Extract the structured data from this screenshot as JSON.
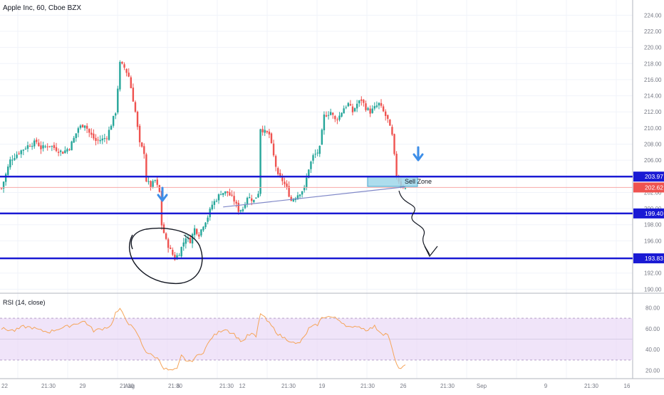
{
  "header": {
    "symbol_title": "Apple Inc, 60, Cboe BZX"
  },
  "colors": {
    "up": "#26a69a",
    "down": "#ef5350",
    "level_line": "#1a1ad4",
    "rsi_line": "#f5a55a",
    "rsi_band": "#e9d8f7",
    "zone_fill": "#9fd8ea",
    "zone_stroke": "#2b9ac7",
    "arrow": "#3d8ee8",
    "price_tag": "#ef5350"
  },
  "price_axis": {
    "ticks": [
      "224.00",
      "222.00",
      "220.00",
      "218.00",
      "216.00",
      "214.00",
      "212.00",
      "210.00",
      "208.00",
      "206.00",
      "202.00",
      "200.00",
      "198.00",
      "196.00",
      "192.00",
      "190.00"
    ],
    "levels": [
      {
        "price": 203.97,
        "label": "203.97"
      },
      {
        "price": 199.4,
        "label": "199.40"
      },
      {
        "price": 193.83,
        "label": "193.83"
      }
    ],
    "current_price": {
      "price": 202.62,
      "label": "202.62"
    }
  },
  "rsi": {
    "label": "RSI (14, close)",
    "ticks": [
      "80.00",
      "60.00",
      "40.00",
      "20.00"
    ],
    "upper": 70,
    "lower": 30
  },
  "annotations": {
    "sell_zone_label": "Sell Zone",
    "sell_zone": {
      "top": 204.0,
      "bottom": 202.75
    }
  },
  "time_axis": {
    "labels": [
      "22",
      "21:30",
      "29",
      "21:30",
      "Aug",
      "21:30",
      "6",
      "21:30",
      "12",
      "21:30",
      "19",
      "21:30",
      "26",
      "21:30",
      "Sep",
      "9",
      "21:30",
      "16"
    ]
  },
  "chart_data": {
    "type": "candlestick",
    "symbol": "Apple Inc",
    "interval": "60",
    "exchange": "Cboe BZX",
    "ylim": [
      189.5,
      225
    ],
    "close_path": [
      [
        0,
        202.5
      ],
      [
        4,
        206.0
      ],
      [
        8,
        207.0
      ],
      [
        12,
        207.8
      ],
      [
        16,
        208.3
      ],
      [
        18,
        207.5
      ],
      [
        22,
        207.9
      ],
      [
        26,
        207.2
      ],
      [
        28,
        207.0
      ],
      [
        31,
        207.6
      ],
      [
        33,
        208.7
      ],
      [
        35,
        210.0
      ],
      [
        38,
        210.5
      ],
      [
        40,
        209.4
      ],
      [
        43,
        208.4
      ],
      [
        46,
        208.6
      ],
      [
        48,
        208.9
      ],
      [
        52,
        212.0
      ],
      [
        54,
        218.0
      ],
      [
        56,
        217.5
      ],
      [
        58,
        216.4
      ],
      [
        59,
        215.0
      ],
      [
        61,
        212.0
      ],
      [
        62,
        210.0
      ],
      [
        63,
        208.0
      ],
      [
        65,
        207.0
      ],
      [
        66,
        203.5
      ],
      [
        68,
        202.8
      ],
      [
        70,
        203.5
      ],
      [
        72,
        202.0
      ],
      [
        73,
        198.0
      ],
      [
        75,
        196.0
      ],
      [
        77,
        194.8
      ],
      [
        79,
        193.8
      ],
      [
        81,
        194.5
      ],
      [
        84,
        196.5
      ],
      [
        86,
        196.0
      ],
      [
        88,
        197.5
      ],
      [
        90,
        196.8
      ],
      [
        92,
        198.0
      ],
      [
        94,
        199.0
      ],
      [
        96,
        200.5
      ],
      [
        98,
        201.2
      ],
      [
        100,
        202.0
      ],
      [
        103,
        202.0
      ],
      [
        106,
        201.0
      ],
      [
        108,
        199.8
      ],
      [
        110,
        200.0
      ],
      [
        112,
        201.5
      ],
      [
        115,
        201.0
      ],
      [
        117,
        202.0
      ],
      [
        118,
        210.0
      ],
      [
        120,
        209.5
      ],
      [
        122,
        209.2
      ],
      [
        124,
        206.5
      ],
      [
        126,
        204.0
      ],
      [
        128,
        203.5
      ],
      [
        130,
        202.5
      ],
      [
        132,
        201.0
      ],
      [
        134,
        201.5
      ],
      [
        136,
        202.0
      ],
      [
        138,
        202.5
      ],
      [
        140,
        205.0
      ],
      [
        142,
        206.5
      ],
      [
        144,
        207.0
      ],
      [
        145,
        207.5
      ],
      [
        147,
        211.5
      ],
      [
        150,
        212.0
      ],
      [
        152,
        211.0
      ],
      [
        154,
        211.5
      ],
      [
        156,
        212.5
      ],
      [
        158,
        213.0
      ],
      [
        160,
        212.0
      ],
      [
        162,
        213.0
      ],
      [
        164,
        213.5
      ],
      [
        166,
        212.5
      ],
      [
        168,
        212.0
      ],
      [
        170,
        212.5
      ],
      [
        172,
        213.0
      ],
      [
        174,
        212.0
      ],
      [
        176,
        211.0
      ],
      [
        178,
        209.0
      ],
      [
        180,
        204.0
      ],
      [
        182,
        203.0
      ],
      [
        184,
        202.5
      ]
    ],
    "rsi_path": [
      [
        0,
        60
      ],
      [
        6,
        58
      ],
      [
        10,
        62
      ],
      [
        14,
        61
      ],
      [
        18,
        58
      ],
      [
        22,
        57
      ],
      [
        26,
        60
      ],
      [
        30,
        62
      ],
      [
        34,
        65
      ],
      [
        38,
        67
      ],
      [
        42,
        58
      ],
      [
        46,
        60
      ],
      [
        50,
        63
      ],
      [
        52,
        75
      ],
      [
        54,
        78
      ],
      [
        56,
        72
      ],
      [
        58,
        65
      ],
      [
        60,
        60
      ],
      [
        62,
        55
      ],
      [
        64,
        45
      ],
      [
        66,
        38
      ],
      [
        68,
        35
      ],
      [
        70,
        33
      ],
      [
        72,
        30
      ],
      [
        74,
        22
      ],
      [
        77,
        20
      ],
      [
        80,
        21
      ],
      [
        82,
        34
      ],
      [
        84,
        30
      ],
      [
        86,
        28
      ],
      [
        88,
        32
      ],
      [
        90,
        35
      ],
      [
        92,
        38
      ],
      [
        94,
        45
      ],
      [
        96,
        52
      ],
      [
        98,
        55
      ],
      [
        100,
        58
      ],
      [
        102,
        60
      ],
      [
        104,
        57
      ],
      [
        106,
        55
      ],
      [
        108,
        50
      ],
      [
        110,
        48
      ],
      [
        112,
        53
      ],
      [
        114,
        55
      ],
      [
        116,
        52
      ],
      [
        118,
        75
      ],
      [
        120,
        70
      ],
      [
        122,
        65
      ],
      [
        124,
        60
      ],
      [
        126,
        55
      ],
      [
        128,
        52
      ],
      [
        130,
        50
      ],
      [
        132,
        48
      ],
      [
        134,
        45
      ],
      [
        136,
        47
      ],
      [
        138,
        52
      ],
      [
        140,
        60
      ],
      [
        142,
        62
      ],
      [
        144,
        64
      ],
      [
        146,
        70
      ],
      [
        148,
        72
      ],
      [
        150,
        71
      ],
      [
        152,
        70
      ],
      [
        154,
        68
      ],
      [
        156,
        65
      ],
      [
        158,
        62
      ],
      [
        160,
        60
      ],
      [
        162,
        63
      ],
      [
        164,
        61
      ],
      [
        166,
        59
      ],
      [
        168,
        60
      ],
      [
        170,
        62
      ],
      [
        172,
        58
      ],
      [
        174,
        55
      ],
      [
        176,
        55
      ],
      [
        178,
        40
      ],
      [
        180,
        25
      ],
      [
        182,
        22
      ],
      [
        184,
        24
      ]
    ],
    "trendline": [
      [
        101,
        200.2
      ],
      [
        184,
        202.7
      ]
    ],
    "time_labels": [
      "22",
      "21:30",
      "29",
      "21:30",
      "Aug",
      "21:30",
      "6",
      "21:30",
      "12",
      "21:30",
      "19",
      "21:30",
      "26",
      "21:30",
      "Sep",
      "9",
      "21:30",
      "16"
    ],
    "price_axis_ticks": [
      224,
      222,
      220,
      218,
      216,
      214,
      212,
      210,
      208,
      206,
      202,
      200,
      198,
      196,
      192,
      190
    ],
    "rsi_axis_ticks": [
      80,
      60,
      40,
      20
    ]
  }
}
